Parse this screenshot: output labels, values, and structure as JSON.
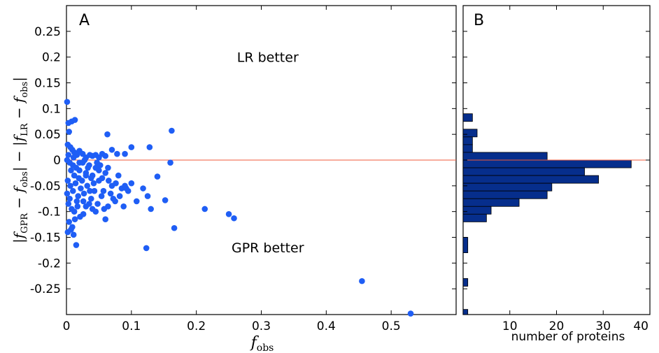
{
  "chart_data": [
    {
      "type": "scatter",
      "panel_label": "A",
      "xlabel": "f_obs",
      "ylabel": "|f_GPR − f_obs| − |f_LR − f_obs|",
      "xlim": [
        0,
        0.6
      ],
      "ylim": [
        -0.3,
        0.3
      ],
      "xticks": [
        "0",
        "0.1",
        "0.2",
        "0.3",
        "0.4",
        "0.5"
      ],
      "yticks": [
        "0.25",
        "0.2",
        "0.15",
        "0.1",
        "0.05",
        "0",
        "-0.05",
        "-0.1",
        "-0.15",
        "-0.2",
        "-0.25"
      ],
      "annotations": [
        {
          "text": "LR better",
          "x": 0.31,
          "y": 0.2
        },
        {
          "text": "GPR better",
          "x": 0.31,
          "y": -0.17
        }
      ],
      "reference_line_y": 0,
      "colors": {
        "points": "#1f5ef5",
        "reference_line": "#f05a3a"
      },
      "points": [
        [
          0.001,
          0.113
        ],
        [
          0.003,
          0.072
        ],
        [
          0.008,
          0.075
        ],
        [
          0.013,
          0.078
        ],
        [
          0.004,
          0.055
        ],
        [
          0.002,
          0.03
        ],
        [
          0.006,
          0.025
        ],
        [
          0.009,
          0.02
        ],
        [
          0.012,
          0.015
        ],
        [
          0.016,
          0.01
        ],
        [
          0.02,
          0.018
        ],
        [
          0.025,
          0.012
        ],
        [
          0.03,
          0.005
        ],
        [
          0.036,
          0.01
        ],
        [
          0.04,
          0.008
        ],
        [
          0.045,
          0.01
        ],
        [
          0.05,
          0.005
        ],
        [
          0.055,
          0.012
        ],
        [
          0.06,
          0.008
        ],
        [
          0.063,
          0.05
        ],
        [
          0.07,
          0.02
        ],
        [
          0.078,
          0.012
        ],
        [
          0.09,
          0.012
        ],
        [
          0.1,
          0.025
        ],
        [
          0.128,
          0.025
        ],
        [
          0.162,
          0.057
        ],
        [
          0.16,
          -0.005
        ],
        [
          0.005,
          -0.005
        ],
        [
          0.01,
          -0.01
        ],
        [
          0.015,
          -0.015
        ],
        [
          0.02,
          -0.02
        ],
        [
          0.025,
          -0.005
        ],
        [
          0.03,
          -0.025
        ],
        [
          0.035,
          -0.01
        ],
        [
          0.04,
          -0.03
        ],
        [
          0.045,
          -0.015
        ],
        [
          0.05,
          -0.02
        ],
        [
          0.055,
          -0.035
        ],
        [
          0.06,
          -0.025
        ],
        [
          0.065,
          -0.04
        ],
        [
          0.07,
          -0.05
        ],
        [
          0.08,
          -0.03
        ],
        [
          0.085,
          -0.055
        ],
        [
          0.09,
          -0.05
        ],
        [
          0.095,
          -0.06
        ],
        [
          0.1,
          -0.045
        ],
        [
          0.108,
          -0.08
        ],
        [
          0.118,
          -0.055
        ],
        [
          0.125,
          -0.07
        ],
        [
          0.14,
          -0.032
        ],
        [
          0.152,
          -0.078
        ],
        [
          0.002,
          -0.04
        ],
        [
          0.006,
          -0.05
        ],
        [
          0.01,
          -0.06
        ],
        [
          0.014,
          -0.045
        ],
        [
          0.018,
          -0.07
        ],
        [
          0.022,
          -0.055
        ],
        [
          0.027,
          -0.065
        ],
        [
          0.032,
          -0.05
        ],
        [
          0.038,
          -0.075
        ],
        [
          0.043,
          -0.06
        ],
        [
          0.048,
          -0.085
        ],
        [
          0.054,
          -0.07
        ],
        [
          0.058,
          -0.095
        ],
        [
          0.064,
          -0.09
        ],
        [
          0.068,
          -0.065
        ],
        [
          0.075,
          -0.08
        ],
        [
          0.082,
          -0.07
        ],
        [
          0.003,
          -0.085
        ],
        [
          0.008,
          -0.095
        ],
        [
          0.012,
          -0.1
        ],
        [
          0.017,
          -0.09
        ],
        [
          0.021,
          -0.11
        ],
        [
          0.026,
          -0.08
        ],
        [
          0.03,
          -0.09
        ],
        [
          0.035,
          -0.085
        ],
        [
          0.04,
          -0.095
        ],
        [
          0.045,
          -0.1
        ],
        [
          0.06,
          -0.115
        ],
        [
          0.088,
          -0.09
        ],
        [
          0.13,
          -0.095
        ],
        [
          0.004,
          -0.12
        ],
        [
          0.009,
          -0.13
        ],
        [
          0.013,
          -0.115
        ],
        [
          0.002,
          -0.14
        ],
        [
          0.007,
          -0.135
        ],
        [
          0.011,
          -0.145
        ],
        [
          0.015,
          -0.165
        ],
        [
          0.166,
          -0.132
        ],
        [
          0.123,
          -0.171
        ],
        [
          0.213,
          -0.095
        ],
        [
          0.25,
          -0.105
        ],
        [
          0.258,
          -0.113
        ],
        [
          0.455,
          -0.235
        ],
        [
          0.53,
          -0.298
        ],
        [
          0.001,
          0.0
        ],
        [
          0.003,
          0.01
        ],
        [
          0.007,
          -0.02
        ],
        [
          0.011,
          0.005
        ],
        [
          0.019,
          -0.035
        ],
        [
          0.024,
          -0.04
        ],
        [
          0.028,
          0.0
        ],
        [
          0.033,
          -0.015
        ],
        [
          0.042,
          -0.045
        ],
        [
          0.047,
          -0.005
        ],
        [
          0.052,
          -0.01
        ],
        [
          0.057,
          -0.06
        ],
        [
          0.072,
          -0.075
        ],
        [
          0.076,
          -0.045
        ],
        [
          0.092,
          -0.055
        ],
        [
          0.005,
          -0.075
        ],
        [
          0.016,
          -0.08
        ],
        [
          0.001,
          -0.065
        ],
        [
          0.02,
          -0.005
        ],
        [
          0.03,
          -0.03
        ],
        [
          0.05,
          -0.04
        ],
        [
          0.064,
          -0.015
        ],
        [
          0.038,
          -0.035
        ],
        [
          0.012,
          -0.03
        ],
        [
          0.026,
          -0.105
        ],
        [
          0.036,
          -0.06
        ]
      ]
    },
    {
      "type": "bar",
      "orientation": "horizontal",
      "panel_label": "B",
      "xlabel": "number of proteins",
      "xlim": [
        0,
        40
      ],
      "xticks": [
        "10",
        "20",
        "30",
        "40"
      ],
      "ylim": [
        -0.3,
        0.3
      ],
      "colors": {
        "bars": "#062e8c",
        "edge": "#000000"
      },
      "bins": [
        {
          "y_from": 0.09,
          "y_to": 0.075,
          "count": 2
        },
        {
          "y_from": 0.06,
          "y_to": 0.045,
          "count": 3
        },
        {
          "y_from": 0.045,
          "y_to": 0.03,
          "count": 2
        },
        {
          "y_from": 0.03,
          "y_to": 0.015,
          "count": 2
        },
        {
          "y_from": 0.015,
          "y_to": 0.0,
          "count": 18
        },
        {
          "y_from": 0.0,
          "y_to": -0.015,
          "count": 36
        },
        {
          "y_from": -0.015,
          "y_to": -0.03,
          "count": 26
        },
        {
          "y_from": -0.03,
          "y_to": -0.045,
          "count": 29
        },
        {
          "y_from": -0.045,
          "y_to": -0.06,
          "count": 19
        },
        {
          "y_from": -0.06,
          "y_to": -0.075,
          "count": 18
        },
        {
          "y_from": -0.075,
          "y_to": -0.09,
          "count": 12
        },
        {
          "y_from": -0.09,
          "y_to": -0.105,
          "count": 6
        },
        {
          "y_from": -0.105,
          "y_to": -0.12,
          "count": 5
        },
        {
          "y_from": -0.15,
          "y_to": -0.18,
          "count": 1
        },
        {
          "y_from": -0.23,
          "y_to": -0.245,
          "count": 1
        },
        {
          "y_from": -0.29,
          "y_to": -0.3,
          "count": 1
        }
      ]
    }
  ]
}
